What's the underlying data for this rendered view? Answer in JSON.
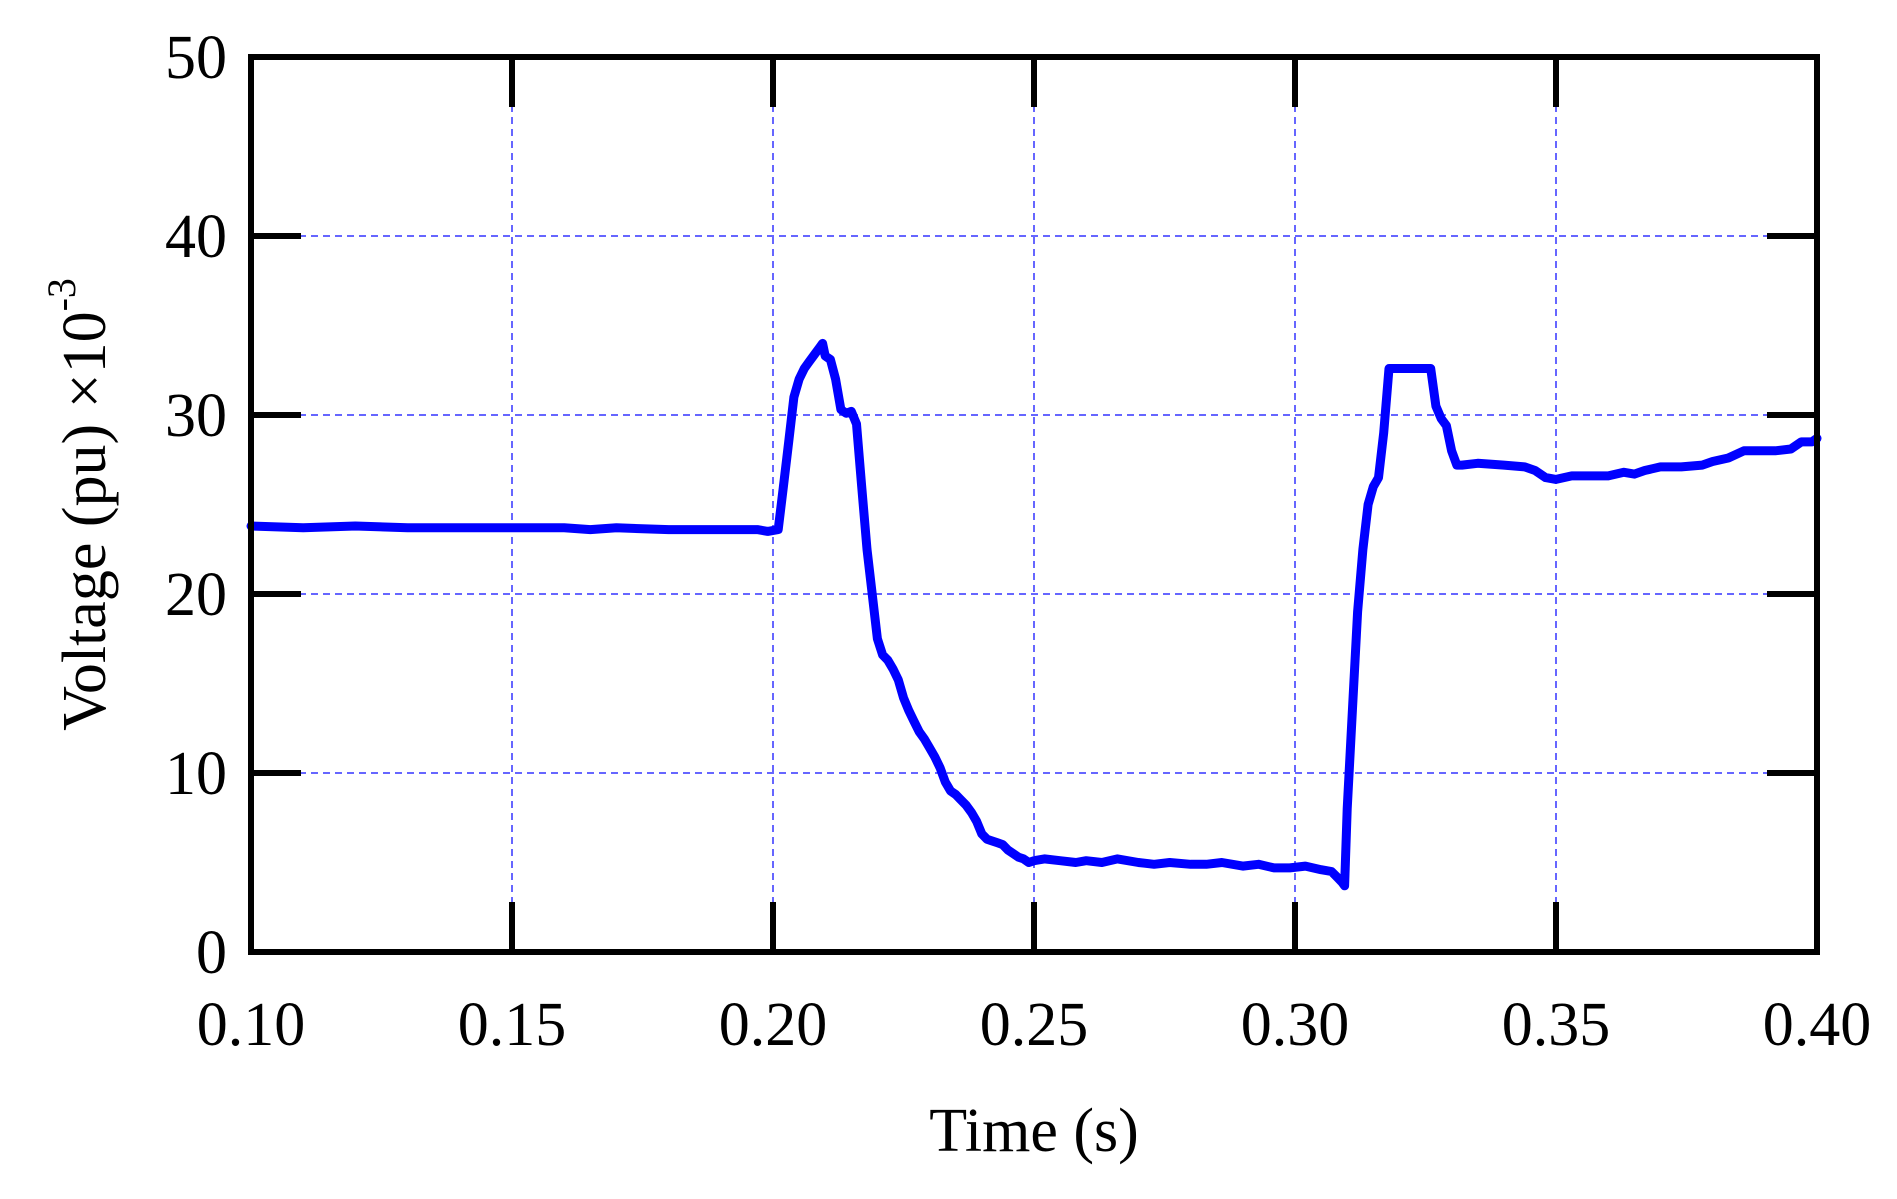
{
  "chart_data": {
    "type": "line",
    "title": "",
    "xlabel": "Time (s)",
    "ylabel_base": "Voltage (pu) ×10",
    "ylabel_exponent": "-3",
    "xlim": [
      0.1,
      0.4
    ],
    "ylim": [
      0,
      50
    ],
    "x_ticks": [
      0.1,
      0.15,
      0.2,
      0.25,
      0.3,
      0.35,
      0.4
    ],
    "x_tick_labels": [
      "0.10",
      "0.15",
      "0.20",
      "0.25",
      "0.30",
      "0.35",
      "0.40"
    ],
    "y_ticks": [
      0,
      10,
      20,
      30,
      40,
      50
    ],
    "y_tick_labels": [
      "0",
      "10",
      "20",
      "30",
      "40",
      "50"
    ],
    "grid": true,
    "colors": {
      "series": "#0000ff",
      "grid": "#0000ff",
      "axis": "#000000"
    },
    "series": [
      {
        "points": [
          [
            0.1,
            23.8
          ],
          [
            0.11,
            23.7
          ],
          [
            0.12,
            23.8
          ],
          [
            0.13,
            23.7
          ],
          [
            0.14,
            23.7
          ],
          [
            0.15,
            23.7
          ],
          [
            0.16,
            23.7
          ],
          [
            0.165,
            23.6
          ],
          [
            0.17,
            23.7
          ],
          [
            0.18,
            23.6
          ],
          [
            0.19,
            23.6
          ],
          [
            0.197,
            23.6
          ],
          [
            0.199,
            23.5
          ],
          [
            0.201,
            23.6
          ],
          [
            0.202,
            26.0
          ],
          [
            0.203,
            28.5
          ],
          [
            0.204,
            31.0
          ],
          [
            0.205,
            32.0
          ],
          [
            0.206,
            32.6
          ],
          [
            0.207,
            33.0
          ],
          [
            0.208,
            33.4
          ],
          [
            0.209,
            33.8
          ],
          [
            0.2095,
            34.0
          ],
          [
            0.21,
            33.3
          ],
          [
            0.211,
            33.1
          ],
          [
            0.212,
            32.0
          ],
          [
            0.213,
            30.3
          ],
          [
            0.214,
            30.1
          ],
          [
            0.215,
            30.2
          ],
          [
            0.216,
            29.5
          ],
          [
            0.217,
            26.0
          ],
          [
            0.218,
            22.5
          ],
          [
            0.219,
            20.0
          ],
          [
            0.22,
            17.5
          ],
          [
            0.221,
            16.6
          ],
          [
            0.222,
            16.3
          ],
          [
            0.223,
            15.8
          ],
          [
            0.224,
            15.2
          ],
          [
            0.225,
            14.2
          ],
          [
            0.226,
            13.5
          ],
          [
            0.227,
            12.9
          ],
          [
            0.228,
            12.3
          ],
          [
            0.229,
            11.9
          ],
          [
            0.23,
            11.4
          ],
          [
            0.231,
            10.9
          ],
          [
            0.232,
            10.3
          ],
          [
            0.233,
            9.5
          ],
          [
            0.234,
            9.0
          ],
          [
            0.235,
            8.8
          ],
          [
            0.236,
            8.5
          ],
          [
            0.237,
            8.2
          ],
          [
            0.238,
            7.8
          ],
          [
            0.239,
            7.3
          ],
          [
            0.24,
            6.6
          ],
          [
            0.241,
            6.3
          ],
          [
            0.242,
            6.2
          ],
          [
            0.243,
            6.1
          ],
          [
            0.244,
            6.0
          ],
          [
            0.245,
            5.7
          ],
          [
            0.246,
            5.5
          ],
          [
            0.247,
            5.3
          ],
          [
            0.248,
            5.2
          ],
          [
            0.249,
            5.0
          ],
          [
            0.25,
            5.1
          ],
          [
            0.252,
            5.2
          ],
          [
            0.255,
            5.1
          ],
          [
            0.258,
            5.0
          ],
          [
            0.26,
            5.1
          ],
          [
            0.263,
            5.0
          ],
          [
            0.266,
            5.2
          ],
          [
            0.27,
            5.0
          ],
          [
            0.273,
            4.9
          ],
          [
            0.276,
            5.0
          ],
          [
            0.28,
            4.9
          ],
          [
            0.283,
            4.9
          ],
          [
            0.286,
            5.0
          ],
          [
            0.29,
            4.8
          ],
          [
            0.293,
            4.9
          ],
          [
            0.296,
            4.7
          ],
          [
            0.299,
            4.7
          ],
          [
            0.302,
            4.8
          ],
          [
            0.305,
            4.6
          ],
          [
            0.307,
            4.5
          ],
          [
            0.308,
            4.2
          ],
          [
            0.309,
            3.9
          ],
          [
            0.3095,
            3.7
          ],
          [
            0.31,
            8.0
          ],
          [
            0.311,
            13.5
          ],
          [
            0.312,
            19.0
          ],
          [
            0.313,
            22.5
          ],
          [
            0.314,
            25.0
          ],
          [
            0.315,
            26.0
          ],
          [
            0.316,
            26.5
          ],
          [
            0.317,
            29.0
          ],
          [
            0.318,
            32.6
          ],
          [
            0.32,
            32.6
          ],
          [
            0.322,
            32.6
          ],
          [
            0.324,
            32.6
          ],
          [
            0.326,
            32.6
          ],
          [
            0.327,
            30.5
          ],
          [
            0.328,
            29.8
          ],
          [
            0.329,
            29.4
          ],
          [
            0.33,
            28.0
          ],
          [
            0.331,
            27.2
          ],
          [
            0.332,
            27.2
          ],
          [
            0.335,
            27.3
          ],
          [
            0.34,
            27.2
          ],
          [
            0.344,
            27.1
          ],
          [
            0.346,
            26.9
          ],
          [
            0.348,
            26.5
          ],
          [
            0.35,
            26.4
          ],
          [
            0.353,
            26.6
          ],
          [
            0.357,
            26.6
          ],
          [
            0.36,
            26.6
          ],
          [
            0.363,
            26.8
          ],
          [
            0.365,
            26.7
          ],
          [
            0.367,
            26.9
          ],
          [
            0.37,
            27.1
          ],
          [
            0.374,
            27.1
          ],
          [
            0.378,
            27.2
          ],
          [
            0.38,
            27.4
          ],
          [
            0.383,
            27.6
          ],
          [
            0.386,
            28.0
          ],
          [
            0.389,
            28.0
          ],
          [
            0.392,
            28.0
          ],
          [
            0.395,
            28.1
          ],
          [
            0.397,
            28.5
          ],
          [
            0.399,
            28.5
          ],
          [
            0.4,
            28.7
          ]
        ]
      }
    ]
  }
}
